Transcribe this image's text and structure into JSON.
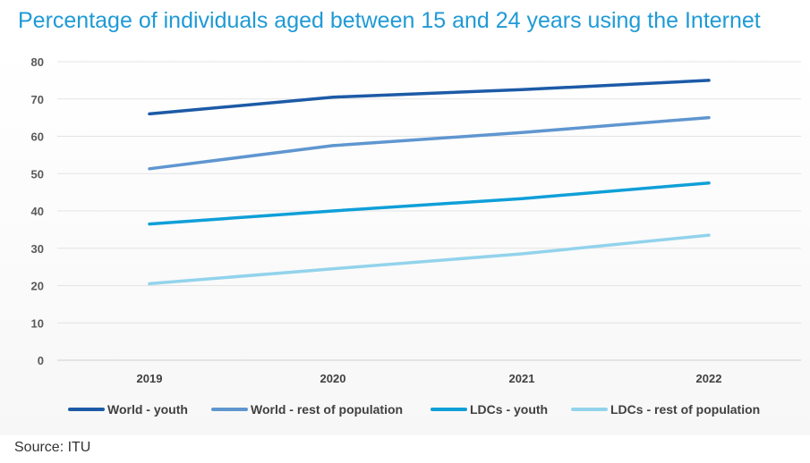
{
  "chart_data": {
    "type": "line",
    "title": "Percentage of individuals aged between 15 and 24 years using the Internet",
    "categories": [
      "2019",
      "2020",
      "2021",
      "2022"
    ],
    "ylim": [
      0,
      80
    ],
    "yticks": [
      0,
      10,
      20,
      30,
      40,
      50,
      60,
      70,
      80
    ],
    "grid": true,
    "legend_position": "bottom",
    "series": [
      {
        "name": "World - youth",
        "values": [
          66,
          70.5,
          72.5,
          75
        ],
        "color": "#1c5aa6"
      },
      {
        "name": "World - rest of population",
        "values": [
          51.3,
          57.5,
          61,
          65
        ],
        "color": "#5f96d0"
      },
      {
        "name": "LDCs - youth",
        "values": [
          36.5,
          40,
          43.3,
          47.5
        ],
        "color": "#0f9fd8"
      },
      {
        "name": "LDCs - rest of population",
        "values": [
          20.5,
          24.5,
          28.5,
          33.5
        ],
        "color": "#92d3ec"
      }
    ]
  },
  "source": "Source: ITU"
}
